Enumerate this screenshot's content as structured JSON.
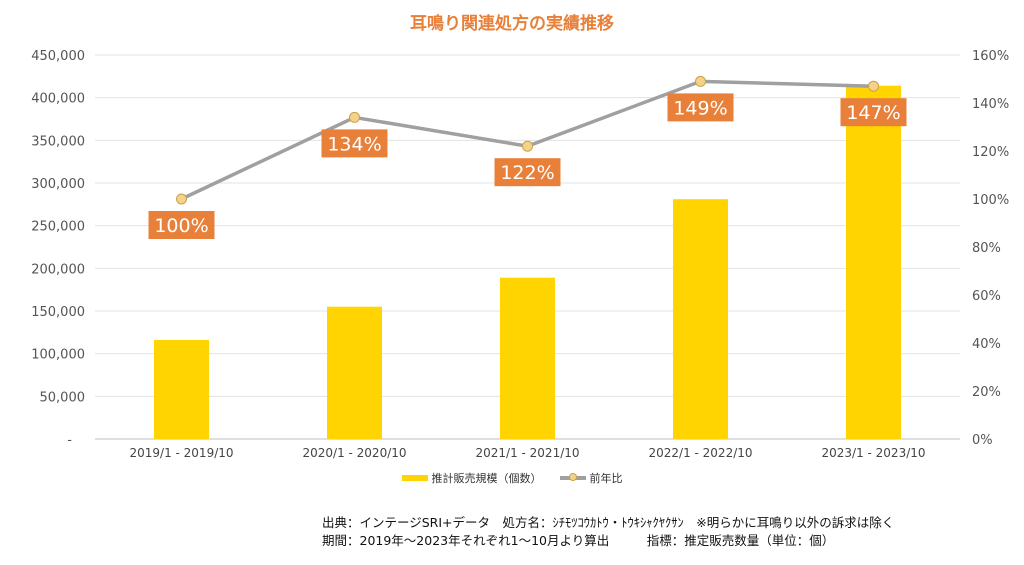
{
  "chart_data": {
    "type": "bar+line",
    "title": "耳鳴り関連処方の実績推移",
    "categories": [
      "2019/1 - 2019/10",
      "2020/1 - 2020/10",
      "2021/1 - 2021/10",
      "2022/1 - 2022/10",
      "2023/1 - 2023/10"
    ],
    "series": [
      {
        "name": "推計販売規模（個数）",
        "type": "bar",
        "axis": "left",
        "color": "#FFD400",
        "values": [
          116000,
          155000,
          189000,
          281000,
          414000
        ]
      },
      {
        "name": "前年比",
        "type": "line",
        "axis": "right",
        "color": "#A0A0A0",
        "values": [
          100,
          134,
          122,
          149,
          147
        ],
        "labels": [
          "100%",
          "134%",
          "122%",
          "149%",
          "147%"
        ],
        "label_color": "#E8803A"
      }
    ],
    "y_left": {
      "ylim": [
        0,
        450000
      ],
      "ticks": [
        "-",
        "50,000",
        "100,000",
        "150,000",
        "200,000",
        "250,000",
        "300,000",
        "350,000",
        "400,000",
        "450,000"
      ]
    },
    "y_right": {
      "ylim": [
        0,
        160
      ],
      "ticks": [
        "0%",
        "20%",
        "40%",
        "60%",
        "80%",
        "100%",
        "120%",
        "140%",
        "160%"
      ]
    },
    "grid": true,
    "legend": "bottom"
  },
  "footer": {
    "line1": "出典：インテージSRI+データ　処方名：ｼﾁﾓﾂｺｳｶﾄｳ・ﾄｳｷｼｬｸﾔｸｻﾝ　※明らかに耳鳴り以外の訴求は除く",
    "line2": "期間：2019年～2023年それぞれ1～10月より算出　　　指標：推定販売数量（単位：個）"
  }
}
